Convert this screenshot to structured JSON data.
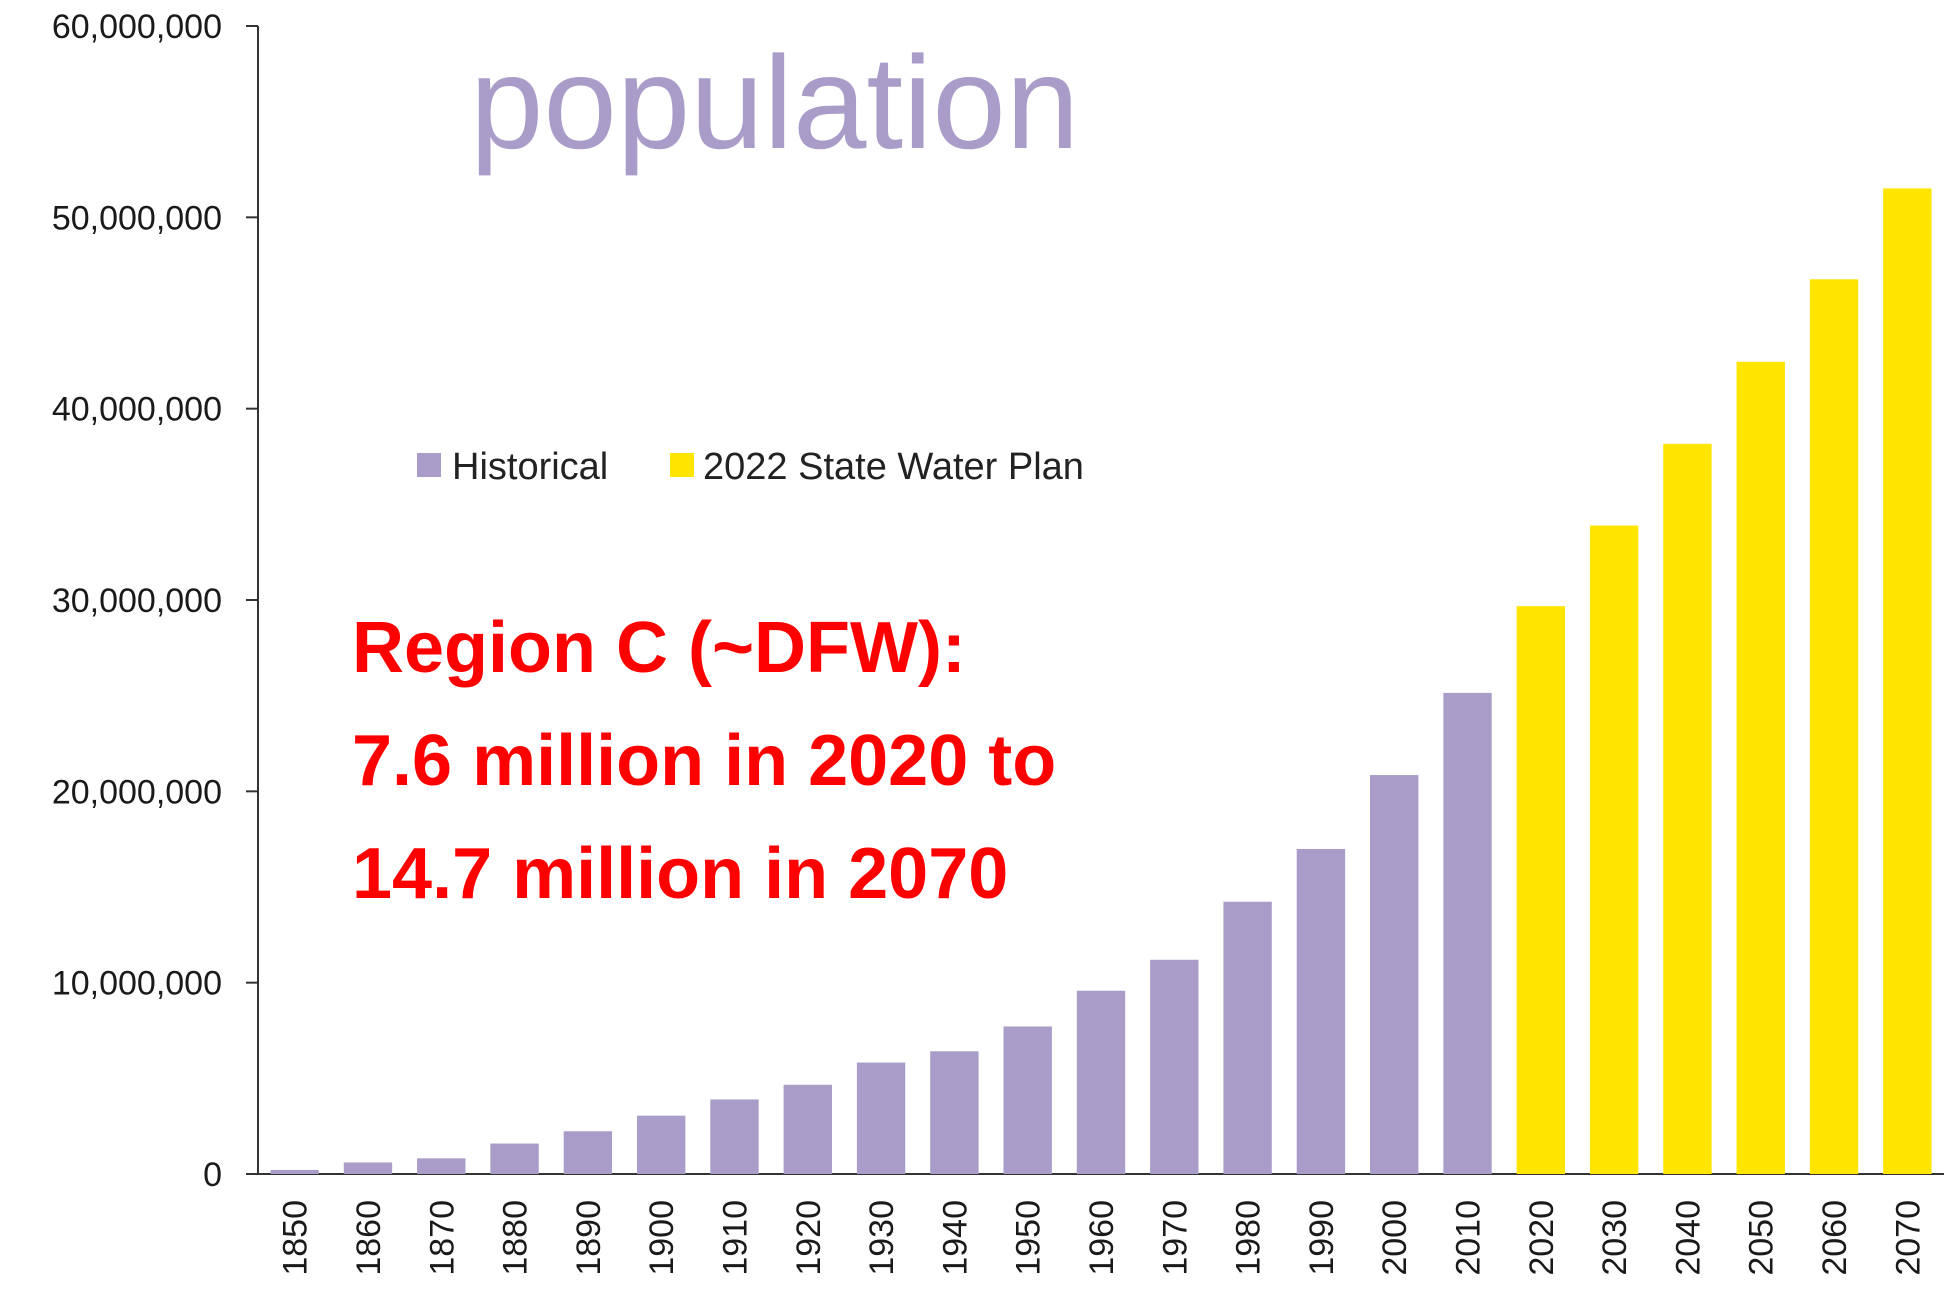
{
  "chart_data": {
    "type": "bar",
    "title": "population",
    "categories": [
      "1850",
      "1860",
      "1870",
      "1880",
      "1890",
      "1900",
      "1910",
      "1920",
      "1930",
      "1940",
      "1950",
      "1960",
      "1970",
      "1980",
      "1990",
      "2000",
      "2010",
      "2020",
      "2030",
      "2040",
      "2050",
      "2060",
      "2070"
    ],
    "series": [
      {
        "name": "Historical",
        "color": "#a99cc8",
        "values": [
          212592,
          604215,
          818579,
          1591749,
          2235527,
          3048710,
          3896542,
          4663228,
          5824715,
          6414824,
          7711194,
          9579677,
          11196730,
          14229191,
          16986510,
          20851820,
          25145561,
          null,
          null,
          null,
          null,
          null,
          null
        ]
      },
      {
        "name": "2022 State Water Plan",
        "color": "#ffe500",
        "values": [
          null,
          null,
          null,
          null,
          null,
          null,
          null,
          null,
          null,
          null,
          null,
          null,
          null,
          null,
          null,
          null,
          null,
          29677772,
          33890555,
          38164611,
          42451877,
          46761593,
          51511971
        ]
      }
    ],
    "ylim": [
      0,
      60000000
    ],
    "yticks": [
      0,
      10000000,
      20000000,
      30000000,
      40000000,
      50000000,
      60000000
    ],
    "ytick_labels": [
      "0",
      "10,000,000",
      "20,000,000",
      "30,000,000",
      "40,000,000",
      "50,000,000",
      "60,000,000"
    ],
    "xlabel": "",
    "ylabel": "",
    "grid": false,
    "legend_placement": "upper-left",
    "annotation": {
      "lines": [
        "Region C (~DFW):",
        "7.6 million in 2020 to",
        "14.7 million in 2070"
      ],
      "color": "#ff0000"
    },
    "title_color": "#a99cc8"
  }
}
